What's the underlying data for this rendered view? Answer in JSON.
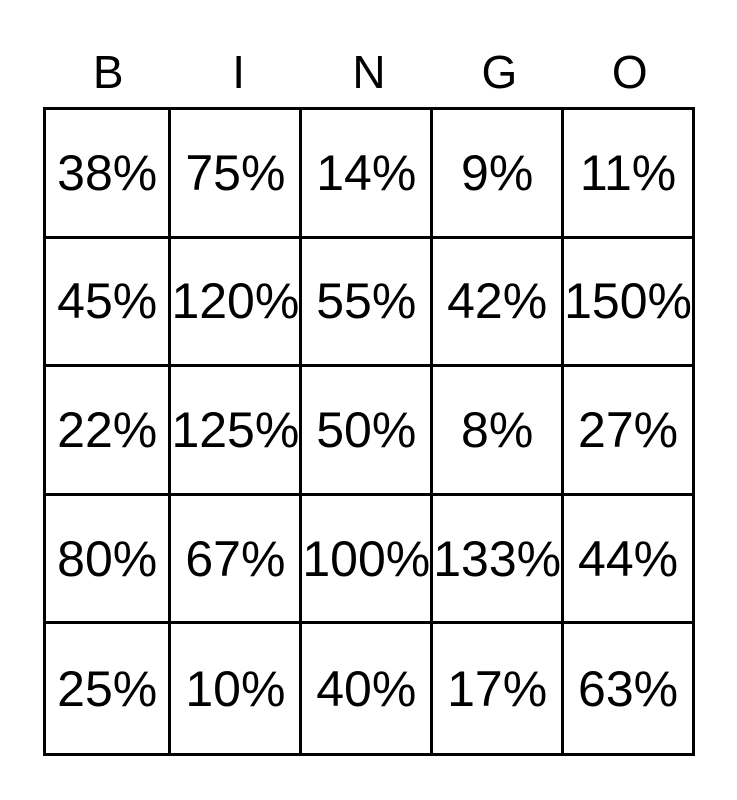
{
  "header": [
    "B",
    "I",
    "N",
    "G",
    "O"
  ],
  "rows": [
    [
      "38%",
      "75%",
      "14%",
      "9%",
      "11%"
    ],
    [
      "45%",
      "120%",
      "55%",
      "42%",
      "150%"
    ],
    [
      "22%",
      "125%",
      "50%",
      "8%",
      "27%"
    ],
    [
      "80%",
      "67%",
      "100%",
      "133%",
      "44%"
    ],
    [
      "25%",
      "10%",
      "40%",
      "17%",
      "63%"
    ]
  ]
}
